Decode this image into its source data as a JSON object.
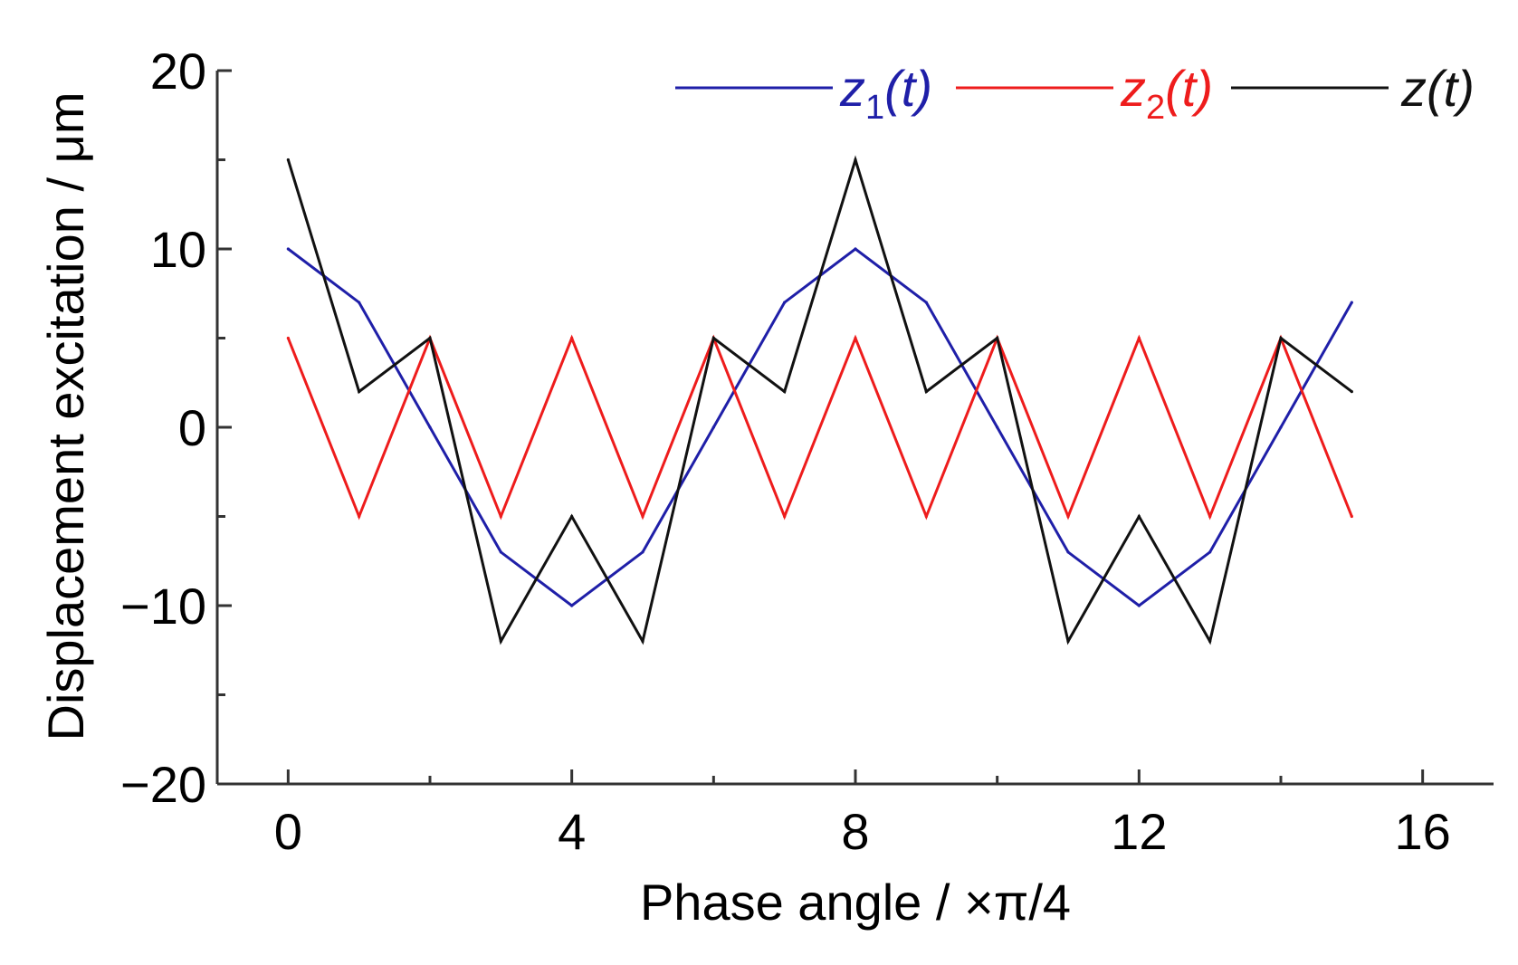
{
  "chart_data": {
    "type": "line",
    "title": "",
    "xlabel": "Phase angle / ×π/4",
    "ylabel": "Displacement excitation / μm",
    "xlim": [
      -1,
      17
    ],
    "ylim": [
      -20,
      20
    ],
    "xticks": [
      0,
      4,
      8,
      12,
      16
    ],
    "xtick_labels": [
      "0",
      "4",
      "8",
      "12",
      "16"
    ],
    "xminor_ticks": [
      2,
      6,
      10,
      14
    ],
    "yticks": [
      -20,
      -10,
      0,
      10,
      20
    ],
    "ytick_labels": [
      "−20",
      "−10",
      "0",
      "10",
      "20"
    ],
    "yminor_ticks": [
      -15,
      -5,
      5,
      15
    ],
    "grid": false,
    "legend_position": "top-right",
    "x": [
      0,
      1,
      2,
      3,
      4,
      5,
      6,
      7,
      8,
      9,
      10,
      11,
      12,
      13,
      14,
      15
    ],
    "series": [
      {
        "name": "z1(t)",
        "legend_main": "z",
        "legend_sub": "1",
        "legend_tail": "(t)",
        "color": "#1f1fa8",
        "values": [
          10,
          7,
          0,
          -7,
          -10,
          -7,
          0,
          7,
          10,
          7,
          0,
          -7,
          -10,
          -7,
          0,
          7
        ]
      },
      {
        "name": "z2(t)",
        "legend_main": "z",
        "legend_sub": "2",
        "legend_tail": "(t)",
        "color": "#ee1c1c",
        "values": [
          5,
          -5,
          5,
          -5,
          5,
          -5,
          5,
          -5,
          5,
          -5,
          5,
          -5,
          5,
          -5,
          5,
          -5
        ]
      },
      {
        "name": "z(t)",
        "legend_main": "z",
        "legend_sub": "",
        "legend_tail": "(t)",
        "color": "#111111",
        "values": [
          15,
          2,
          5,
          -12,
          -5,
          -12,
          5,
          2,
          15,
          2,
          5,
          -12,
          -5,
          -12,
          5,
          2
        ]
      }
    ]
  }
}
